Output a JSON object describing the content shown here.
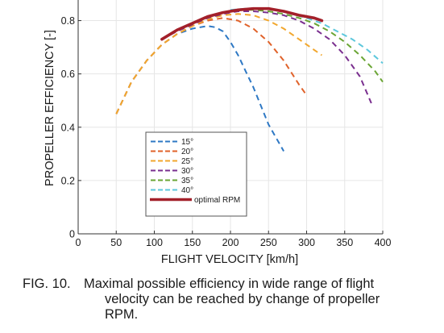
{
  "chart_data": {
    "type": "line",
    "xlabel": "FLIGHT VELOCITY [km/h]",
    "ylabel": "PROPELLER EFFICIENCY [-]",
    "xlim": [
      0,
      400
    ],
    "ylim": [
      0,
      0.9
    ],
    "xticks": [
      "0",
      "50",
      "100",
      "150",
      "200",
      "250",
      "300",
      "350",
      "400"
    ],
    "yticks": [
      "0",
      "0.2",
      "0.4",
      "0.6",
      "0.8"
    ],
    "grid": true,
    "legend_position": "bottom-left",
    "series": [
      {
        "name": "15°",
        "color": "#2e78c4",
        "dashed": true,
        "x": [
          50,
          70,
          90,
          110,
          130,
          150,
          170,
          180,
          190,
          200,
          210,
          220,
          230,
          240,
          250,
          260,
          270
        ],
        "y": [
          0.45,
          0.57,
          0.65,
          0.71,
          0.75,
          0.77,
          0.78,
          0.775,
          0.76,
          0.72,
          0.67,
          0.61,
          0.55,
          0.48,
          0.41,
          0.36,
          0.31
        ]
      },
      {
        "name": "20°",
        "color": "#e0622a",
        "dashed": true,
        "x": [
          50,
          70,
          90,
          110,
          130,
          150,
          170,
          190,
          210,
          230,
          250,
          270,
          290,
          300
        ],
        "y": [
          0.45,
          0.57,
          0.65,
          0.71,
          0.75,
          0.78,
          0.8,
          0.81,
          0.8,
          0.77,
          0.72,
          0.65,
          0.56,
          0.52
        ]
      },
      {
        "name": "25°",
        "color": "#f2a72e",
        "dashed": true,
        "x": [
          50,
          70,
          90,
          110,
          130,
          150,
          170,
          190,
          210,
          230,
          250,
          270,
          290,
          310,
          320
        ],
        "y": [
          0.45,
          0.57,
          0.65,
          0.71,
          0.75,
          0.78,
          0.805,
          0.82,
          0.825,
          0.82,
          0.8,
          0.77,
          0.73,
          0.69,
          0.67
        ]
      },
      {
        "name": "30°",
        "color": "#7a2f8f",
        "dashed": true,
        "x": [
          110,
          130,
          150,
          170,
          190,
          210,
          230,
          250,
          270,
          290,
          310,
          330,
          350,
          370,
          385
        ],
        "y": [
          0.73,
          0.76,
          0.785,
          0.81,
          0.825,
          0.835,
          0.835,
          0.83,
          0.82,
          0.8,
          0.77,
          0.73,
          0.67,
          0.59,
          0.49
        ]
      },
      {
        "name": "35°",
        "color": "#6aa534",
        "dashed": true,
        "x": [
          150,
          170,
          190,
          210,
          230,
          250,
          270,
          290,
          310,
          330,
          350,
          370,
          390,
          400
        ],
        "y": [
          0.79,
          0.815,
          0.83,
          0.84,
          0.84,
          0.835,
          0.825,
          0.81,
          0.79,
          0.76,
          0.72,
          0.67,
          0.61,
          0.57
        ]
      },
      {
        "name": "40°",
        "color": "#5cc7dc",
        "dashed": true,
        "x": [
          200,
          220,
          240,
          260,
          280,
          300,
          320,
          340,
          360,
          380,
          400
        ],
        "y": [
          0.84,
          0.845,
          0.845,
          0.84,
          0.825,
          0.81,
          0.79,
          0.76,
          0.73,
          0.69,
          0.64
        ]
      },
      {
        "name": "optimal RPM",
        "color": "#a3202a",
        "dashed": false,
        "x": [
          110,
          130,
          150,
          170,
          190,
          210,
          230,
          250,
          270,
          290,
          310,
          320
        ],
        "y": [
          0.73,
          0.765,
          0.79,
          0.815,
          0.83,
          0.84,
          0.845,
          0.845,
          0.835,
          0.82,
          0.81,
          0.8
        ]
      }
    ]
  },
  "caption": {
    "number": "FIG. 10.",
    "lines": [
      "Maximal possible efficiency in wide range of flight",
      "velocity can be reached by change of propeller",
      "RPM."
    ]
  }
}
